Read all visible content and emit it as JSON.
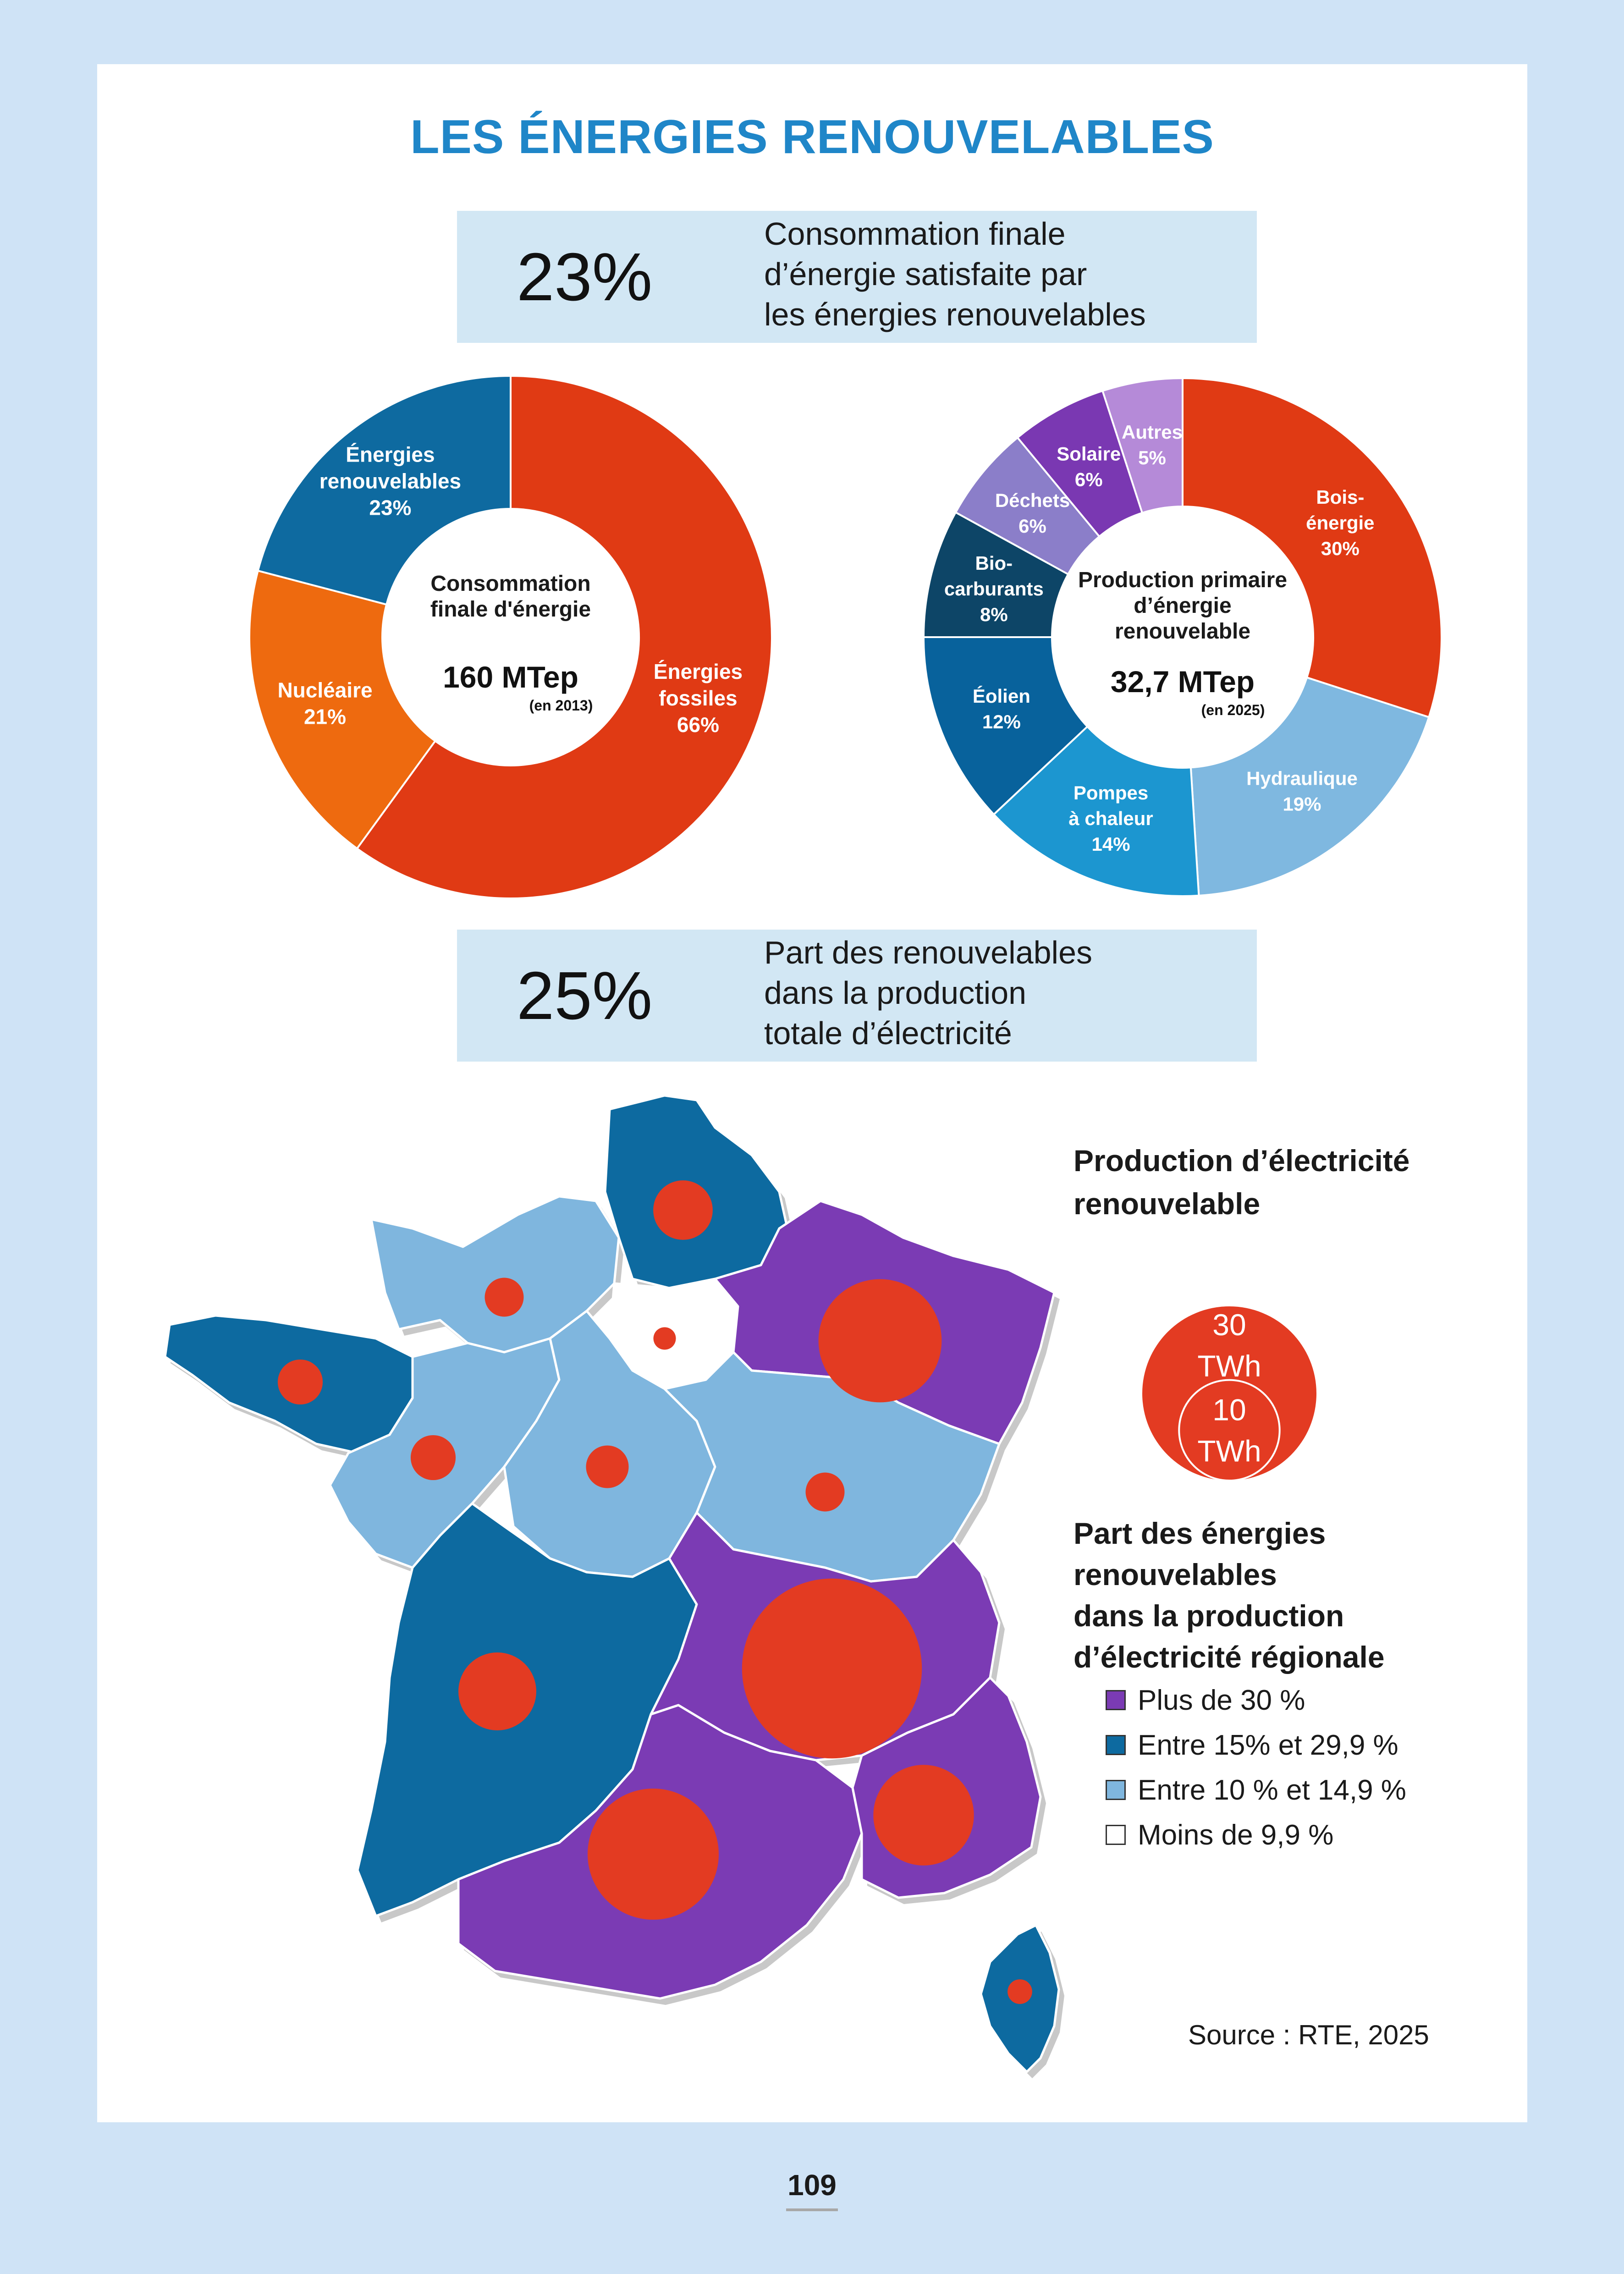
{
  "title": "LES ÉNERGIES RENOUVELABLES",
  "stat1": {
    "value": "23%",
    "lines": [
      "Consommation finale",
      "d’énergie satisfaite par",
      "les énergies renouvelables"
    ]
  },
  "stat2": {
    "value": "25%",
    "lines": [
      "Part des renouvelables",
      "dans la production",
      "totale d’électricité"
    ]
  },
  "chart_data": [
    {
      "type": "pie",
      "center_lines": [
        "Consommation",
        "finale d'énergie"
      ],
      "center_value": "160 MTep",
      "center_note": "(en 2013)",
      "slices": [
        {
          "lines": [
            "Énergies",
            "fossiles",
            "66%"
          ],
          "value": 66,
          "color": "#e03a14"
        },
        {
          "lines": [
            "Nucléaire",
            "21%"
          ],
          "value": 21,
          "color": "#ee6a0f"
        },
        {
          "lines": [
            "Énergies",
            "renouvelables",
            "23%"
          ],
          "value": 23,
          "color": "#0e6aa0"
        }
      ]
    },
    {
      "type": "pie",
      "center_lines": [
        "Production primaire",
        "d’énergie",
        "renouvelable"
      ],
      "center_value": "32,7 MTep",
      "center_note": "(en 2025)",
      "slices": [
        {
          "lines": [
            "Bois-",
            "énergie",
            "30%"
          ],
          "value": 30,
          "color": "#e03a14"
        },
        {
          "lines": [
            "Hydraulique",
            "19%"
          ],
          "value": 19,
          "color": "#7fb8e0"
        },
        {
          "lines": [
            "Pompes",
            "à chaleur",
            "14%"
          ],
          "value": 14,
          "color": "#1c96d0"
        },
        {
          "lines": [
            "Éolien",
            "12%"
          ],
          "value": 12,
          "color": "#08629c"
        },
        {
          "lines": [
            "Bio-",
            "carburants",
            "8%"
          ],
          "value": 8,
          "color": "#0d4567"
        },
        {
          "lines": [
            "Déchets",
            "6%"
          ],
          "value": 6,
          "color": "#8b7ec9"
        },
        {
          "lines": [
            "Solaire",
            "6%"
          ],
          "value": 6,
          "color": "#7a38b2"
        },
        {
          "lines": [
            "Autres",
            "5%"
          ],
          "value": 5,
          "color": "#b58ad8"
        }
      ]
    }
  ],
  "map": {
    "title_lines": [
      "Production d’électricité",
      "renouvelable"
    ],
    "scale_large": [
      "30",
      "TWh"
    ],
    "scale_small": [
      "10",
      "TWh"
    ],
    "bubble_color": "#e33b22",
    "legend_title_lines": [
      "Part des énergies",
      "renouvelables",
      "dans la production",
      "d’électricité régionale"
    ],
    "legend": [
      {
        "label": "Plus de 30 %",
        "color": "#7b3bb4"
      },
      {
        "label": "Entre 15% et 29,9 %",
        "color": "#0d6aa0"
      },
      {
        "label": "Entre 10 % et 14,9 %",
        "color": "#7fb6de"
      },
      {
        "label": "Moins de 9,9 %",
        "color": "#ffffff"
      }
    ],
    "regions": [
      {
        "category": 1,
        "twh": 3.5
      },
      {
        "category": 2,
        "twh": 1.5
      },
      {
        "category": 3,
        "twh": 0.5
      },
      {
        "category": 1,
        "twh": 2.0
      },
      {
        "category": 0,
        "twh": 15.0
      },
      {
        "category": 2,
        "twh": 2.0
      },
      {
        "category": 2,
        "twh": 1.8
      },
      {
        "category": 2,
        "twh": 1.5
      },
      {
        "category": 1,
        "twh": 6.0
      },
      {
        "category": 0,
        "twh": 32.0
      },
      {
        "category": 0,
        "twh": 17.0
      },
      {
        "category": 0,
        "twh": 10.0
      },
      {
        "category": 1,
        "twh": 0.6
      }
    ]
  },
  "source": "Source : RTE, 2025",
  "page_number": "109"
}
